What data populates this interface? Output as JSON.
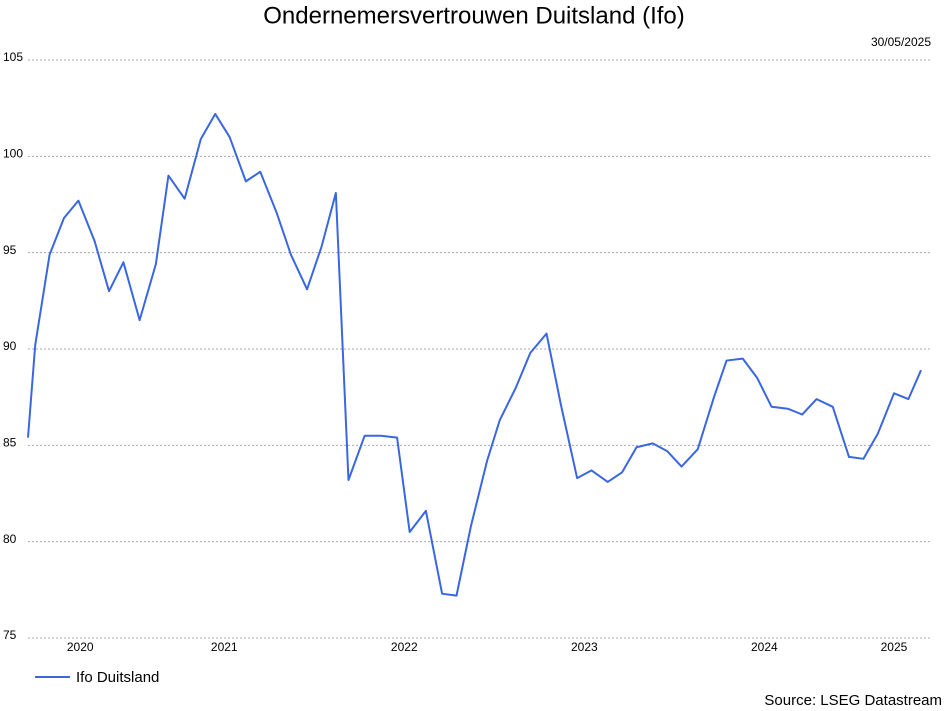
{
  "chart_data": {
    "type": "line",
    "title": "Ondernemersvertrouwen Duitsland (Ifo)",
    "date": "30/05/2025",
    "source": "Source: LSEG Datastream",
    "x": [
      2020.41,
      2020.45,
      2020.53,
      2020.61,
      2020.69,
      2020.78,
      2020.86,
      2020.94,
      2021.03,
      2021.12,
      2021.19,
      2021.28,
      2021.37,
      2021.45,
      2021.53,
      2021.62,
      2021.7,
      2021.79,
      2021.87,
      2021.96,
      2022.04,
      2022.12,
      2022.19,
      2022.28,
      2022.37,
      2022.46,
      2022.53,
      2022.62,
      2022.71,
      2022.79,
      2022.87,
      2022.96,
      2023.03,
      2023.12,
      2023.2,
      2023.29,
      2023.37,
      2023.46,
      2023.54,
      2023.63,
      2023.71,
      2023.79,
      2023.88,
      2023.96,
      2024.04,
      2024.13,
      2024.22,
      2024.29,
      2024.38,
      2024.46,
      2024.54,
      2024.63,
      2024.71,
      2024.79,
      2024.88,
      2024.97,
      2025.05,
      2025.13,
      2025.22,
      2025.3,
      2025.37
    ],
    "series": [
      {
        "name": "Ifo Duitsland",
        "color": "#3a67e0",
        "values": [
          85.4,
          90.2,
          94.9,
          96.8,
          97.7,
          95.6,
          93.0,
          94.5,
          91.5,
          94.4,
          99.0,
          97.8,
          100.9,
          102.2,
          101.0,
          98.7,
          99.2,
          97.1,
          94.9,
          93.1,
          95.3,
          98.1,
          83.2,
          85.5,
          85.5,
          85.4,
          80.5,
          81.6,
          77.3,
          77.2,
          80.8,
          84.2,
          86.3,
          88.0,
          89.8,
          90.8,
          87.1,
          83.3,
          83.7,
          83.1,
          83.6,
          84.9,
          85.1,
          84.7,
          83.9,
          84.8,
          87.5,
          89.4,
          89.5,
          88.5,
          87.0,
          86.9,
          86.6,
          87.4,
          87.0,
          84.4,
          84.3,
          85.6,
          87.7,
          87.4,
          88.9
        ]
      }
    ],
    "xlim": [
      2020.41,
      2025.42
    ],
    "xticks": [
      {
        "value": 2020.7,
        "label": "2020"
      },
      {
        "value": 2021.5,
        "label": "2021"
      },
      {
        "value": 2022.5,
        "label": "2022"
      },
      {
        "value": 2023.5,
        "label": "2023"
      },
      {
        "value": 2024.5,
        "label": "2024"
      },
      {
        "value": 2025.22,
        "label": "2025"
      }
    ],
    "ylim": [
      75,
      105
    ],
    "yticks": [
      75,
      80,
      85,
      90,
      95,
      100,
      105
    ],
    "grid": true,
    "legend": "bottom-left"
  }
}
